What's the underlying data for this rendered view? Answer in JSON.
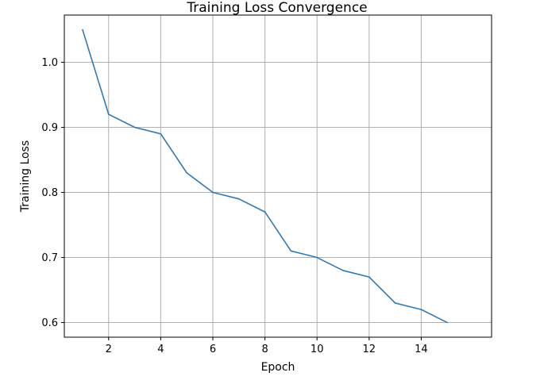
{
  "chart_data": {
    "type": "line",
    "title": "Training Loss Convergence",
    "xlabel": "Epoch",
    "ylabel": "Training Loss",
    "x": [
      1,
      2,
      3,
      4,
      5,
      6,
      7,
      8,
      9,
      10,
      11,
      12,
      13,
      14,
      15
    ],
    "series": [
      {
        "values": [
          1.05,
          0.92,
          0.9,
          0.89,
          0.83,
          0.8,
          0.79,
          0.77,
          0.71,
          0.7,
          0.68,
          0.67,
          0.63,
          0.62,
          0.6
        ],
        "color": "#2e7ab5"
      }
    ],
    "xlim": [
      0.3,
      16.7
    ],
    "ylim": [
      0.5775,
      1.0725
    ],
    "xticks": [
      2,
      4,
      6,
      8,
      10,
      12,
      14
    ],
    "xtick_labels": [
      "2",
      "4",
      "6",
      "8",
      "10",
      "12",
      "14"
    ],
    "yticks": [
      0.6,
      0.7,
      0.8,
      0.9,
      1.0
    ],
    "ytick_labels": [
      "0.6",
      "0.7",
      "0.8",
      "0.9",
      "1.0"
    ],
    "grid": true
  }
}
